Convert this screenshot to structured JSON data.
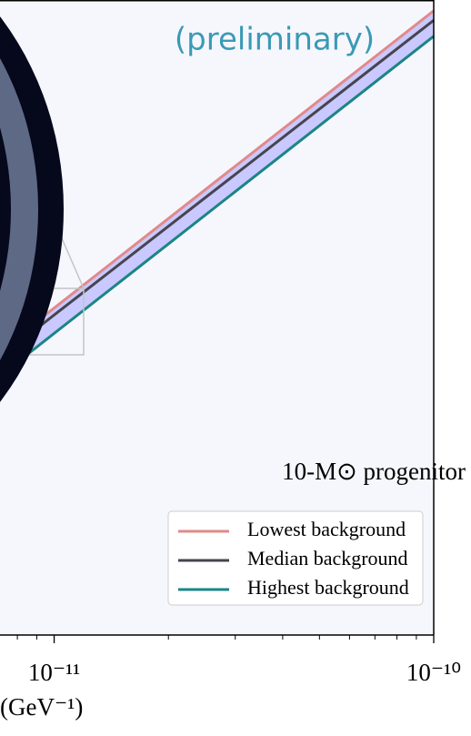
{
  "chart_data": {
    "type": "line",
    "annotations": [
      "(preliminary)",
      "10-M⊙ progenitor"
    ],
    "x_label": "(GeV⁻¹)",
    "x": [
      7.2e-12,
      1e-11,
      1e-10
    ],
    "series": [
      {
        "name": "Lowest background",
        "color": "#e08a8a",
        "values": [
          44.8,
          51.5,
          98.3
        ]
      },
      {
        "name": "Median background",
        "color": "#45454f",
        "values": [
          43.7,
          50.4,
          96.8
        ]
      },
      {
        "name": "Highest background",
        "color": "#1a8585",
        "values": [
          40.8,
          47.5,
          94.3
        ]
      }
    ],
    "band_color": "#c9c8ff",
    "xlim": [
      7.2e-12,
      1e-10
    ],
    "ylim": [
      0,
      100
    ],
    "xscale": "log",
    "xticks": [
      {
        "value": 1e-11,
        "label": "10⁻¹¹"
      },
      {
        "value": 1e-10,
        "label": "10⁻¹⁰"
      }
    ],
    "xminorticks": [
      8e-12,
      9e-12,
      2e-11,
      3e-11,
      4e-11,
      5e-11,
      6e-11,
      7e-11,
      8e-11,
      9e-11
    ],
    "legend": "lower right"
  }
}
